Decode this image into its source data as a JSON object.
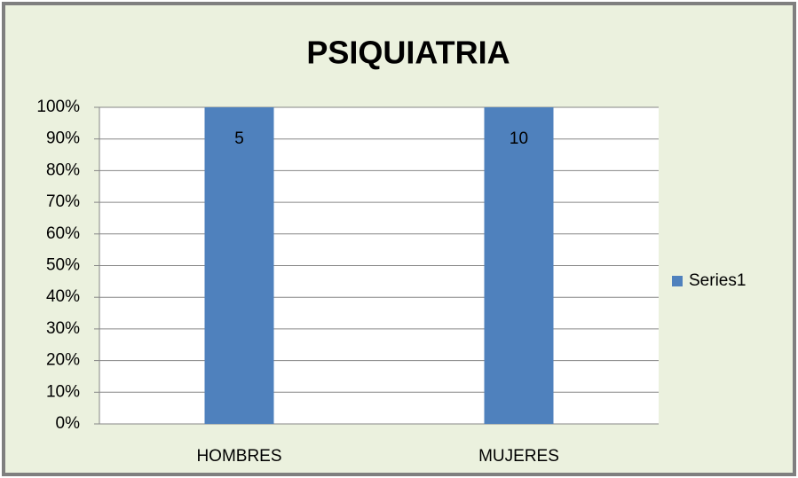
{
  "chart_data": {
    "type": "bar",
    "stacking": "percent",
    "title": "PSIQUIATRIA",
    "categories": [
      "HOMBRES",
      "MUJERES"
    ],
    "series": [
      {
        "name": "Series1",
        "color": "#4f81bd",
        "values": [
          5,
          10
        ]
      }
    ],
    "ylim": [
      0,
      100
    ],
    "yticks": [
      {
        "value": 0,
        "label": "0%"
      },
      {
        "value": 10,
        "label": "10%"
      },
      {
        "value": 20,
        "label": "20%"
      },
      {
        "value": 30,
        "label": "30%"
      },
      {
        "value": 40,
        "label": "40%"
      },
      {
        "value": 50,
        "label": "50%"
      },
      {
        "value": 60,
        "label": "60%"
      },
      {
        "value": 70,
        "label": "70%"
      },
      {
        "value": 80,
        "label": "80%"
      },
      {
        "value": 90,
        "label": "90%"
      },
      {
        "value": 100,
        "label": "100%"
      }
    ],
    "grid": true,
    "legend": "right"
  }
}
